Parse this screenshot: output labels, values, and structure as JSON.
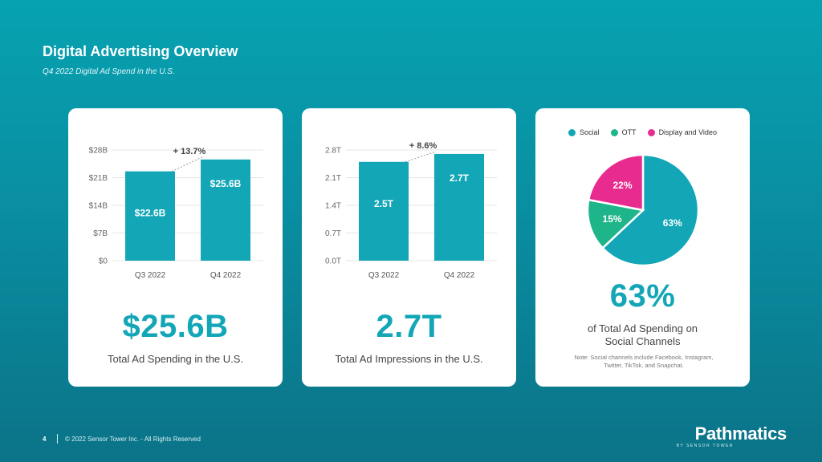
{
  "page": {
    "title": "Digital Advertising Overview",
    "subtitle": "Q4 2022 Digital Ad Spend in the U.S."
  },
  "colors": {
    "teal": "#12a6b7",
    "ott_green": "#1fb58a",
    "display_pink": "#e82c8f",
    "background": "#0a8ea1"
  },
  "cards": {
    "spend": {
      "big_value": "$25.6B",
      "label": "Total Ad Spending in the U.S."
    },
    "impressions": {
      "big_value": "2.7T",
      "label": "Total Ad Impressions in the U.S."
    },
    "share": {
      "big_value": "63%",
      "label_line1": "of Total Ad Spending on",
      "label_line2": "Social Channels",
      "note_line1": "Note: Social channels include Facebook, Instagram,",
      "note_line2": "Twitter, TikTok, and Snapchat."
    }
  },
  "chart_data": [
    {
      "type": "bar",
      "categories": [
        "Q3 2022",
        "Q4 2022"
      ],
      "values": [
        22.6,
        25.6
      ],
      "data_labels": [
        "$22.6B",
        "$25.6B"
      ],
      "ylim": [
        0,
        28
      ],
      "yticks": [
        0,
        7,
        14,
        21,
        28
      ],
      "ytick_labels": [
        "$0",
        "$7B",
        "$14B",
        "$21B",
        "$28B"
      ],
      "annotation": "+ 13.7%",
      "grid": true
    },
    {
      "type": "bar",
      "categories": [
        "Q3 2022",
        "Q4 2022"
      ],
      "values": [
        2.5,
        2.7
      ],
      "data_labels": [
        "2.5T",
        "2.7T"
      ],
      "ylim": [
        0,
        2.8
      ],
      "yticks": [
        0,
        0.7,
        1.4,
        2.1,
        2.8
      ],
      "ytick_labels": [
        "0.0T",
        "0.7T",
        "1.4T",
        "2.1T",
        "2.8T"
      ],
      "annotation": "+ 8.6%",
      "grid": true
    },
    {
      "type": "pie",
      "labels": [
        "Social",
        "OTT",
        "Display and Video"
      ],
      "values": [
        63,
        15,
        22
      ],
      "data_labels": [
        "63%",
        "15%",
        "22%"
      ],
      "colors": [
        "#12a6b7",
        "#1fb58a",
        "#e82c8f"
      ],
      "legend_position": "top"
    }
  ],
  "footer": {
    "page_number": "4",
    "copyright": "© 2022 Sensor Tower Inc. - All Rights Reserved",
    "logo": "Pathmatics",
    "logo_sub": "BY SENSOR TOWER"
  }
}
